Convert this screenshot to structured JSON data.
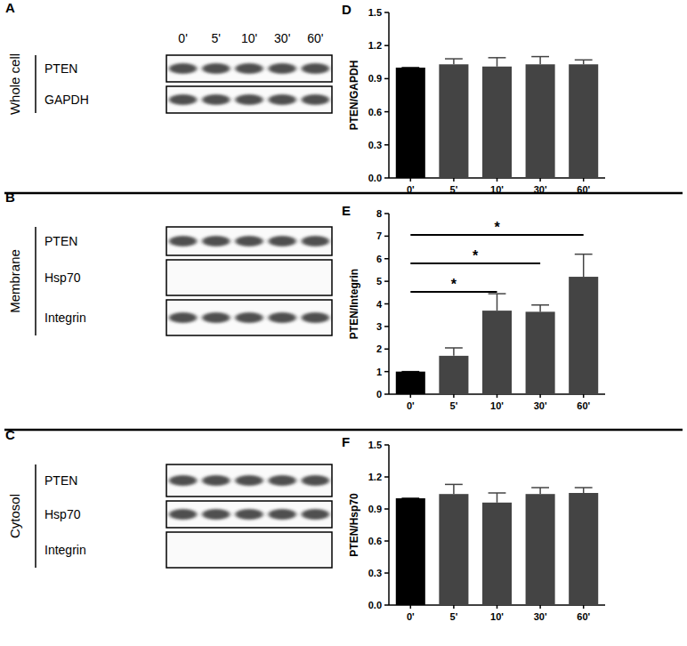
{
  "chart_data": [
    {
      "type": "bar",
      "title": "D",
      "y_label": "PTEN/GAPDH",
      "categories": [
        "0'",
        "5'",
        "10'",
        "30'",
        "60'"
      ],
      "values": [
        1.0,
        1.03,
        1.01,
        1.03,
        1.03
      ],
      "errors": [
        0,
        0.05,
        0.08,
        0.07,
        0.04
      ],
      "colors": [
        "#000000",
        "#444444",
        "#444444",
        "#444444",
        "#444444"
      ],
      "ylim": [
        0,
        1.5
      ],
      "yticks": [
        {
          "value": 0,
          "label": "0.0"
        },
        0.3,
        0.6,
        0.9,
        1.2,
        1.5
      ]
    },
    {
      "type": "bar",
      "title": "E",
      "y_label": "PTEN/Integrin",
      "categories": [
        "0'",
        "5'",
        "10'",
        "30'",
        "60'"
      ],
      "values": [
        1.0,
        1.7,
        3.7,
        3.65,
        5.2
      ],
      "errors": [
        0,
        0.35,
        0.75,
        0.3,
        1.0
      ],
      "colors": [
        "#000000",
        "#444444",
        "#444444",
        "#444444",
        "#444444"
      ],
      "ylim": [
        0,
        8
      ],
      "yticks": [
        0,
        1,
        2,
        3,
        4,
        5,
        6,
        7,
        8
      ],
      "annotations": [
        {
          "from": "0'",
          "to": "10'",
          "text": "*"
        },
        {
          "from": "0'",
          "to": "30'",
          "text": "*"
        },
        {
          "from": "0'",
          "to": "60'",
          "text": "*"
        }
      ]
    },
    {
      "type": "bar",
      "title": "F",
      "y_label": "PTEN/Hsp70",
      "categories": [
        "0'",
        "5'",
        "10'",
        "30'",
        "60'"
      ],
      "values": [
        1.0,
        1.04,
        0.96,
        1.04,
        1.05
      ],
      "errors": [
        0,
        0.09,
        0.09,
        0.06,
        0.05
      ],
      "colors": [
        "#000000",
        "#444444",
        "#444444",
        "#444444",
        "#444444"
      ],
      "ylim": [
        0,
        1.5
      ],
      "yticks": [
        {
          "value": 0,
          "label": "0.0"
        },
        0.3,
        0.6,
        0.9,
        1.2,
        1.5
      ]
    }
  ],
  "blots": [
    {
      "panel": "A",
      "section": "Whole cell",
      "lanes": [
        "0'",
        "5'",
        "10'",
        "30'",
        "60'"
      ],
      "rows": [
        {
          "label": "PTEN",
          "bands": true
        },
        {
          "label": "GAPDH",
          "bands": true
        }
      ]
    },
    {
      "panel": "B",
      "section": "Membrane",
      "rows": [
        {
          "label": "PTEN",
          "bands": true
        },
        {
          "label": "Hsp70",
          "bands": false
        },
        {
          "label": "Integrin",
          "bands": true
        }
      ]
    },
    {
      "panel": "C",
      "section": "Cytosol",
      "rows": [
        {
          "label": "PTEN",
          "bands": true
        },
        {
          "label": "Hsp70",
          "bands": true
        },
        {
          "label": "Integrin",
          "bands": false
        }
      ]
    }
  ]
}
